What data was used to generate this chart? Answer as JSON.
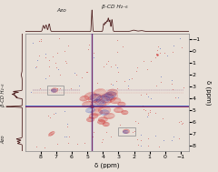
{
  "title": "",
  "xlabel": "δ (ppm)",
  "ylabel": "δ (ppm)",
  "xlim": [
    9.0,
    -1.5
  ],
  "ylim": [
    -1.5,
    8.5
  ],
  "xticks": [
    8,
    7,
    6,
    5,
    4,
    3,
    2,
    1,
    0,
    -1
  ],
  "yticks": [
    -1,
    0,
    1,
    2,
    3,
    4,
    5,
    6,
    7,
    8
  ],
  "background": "#e8e0d8",
  "label_top_azo": "Azo",
  "label_top_bcd": "β-CD H₂₋₆",
  "label_left_bcd": "β-CD H₂₋₆",
  "label_left_azo": "Azo",
  "plot_bg": "#e8e0d8",
  "red_color": "#cc1111",
  "blue_color": "#1133bb",
  "brown_color": "#4a1a1a",
  "box_color": "#999999"
}
